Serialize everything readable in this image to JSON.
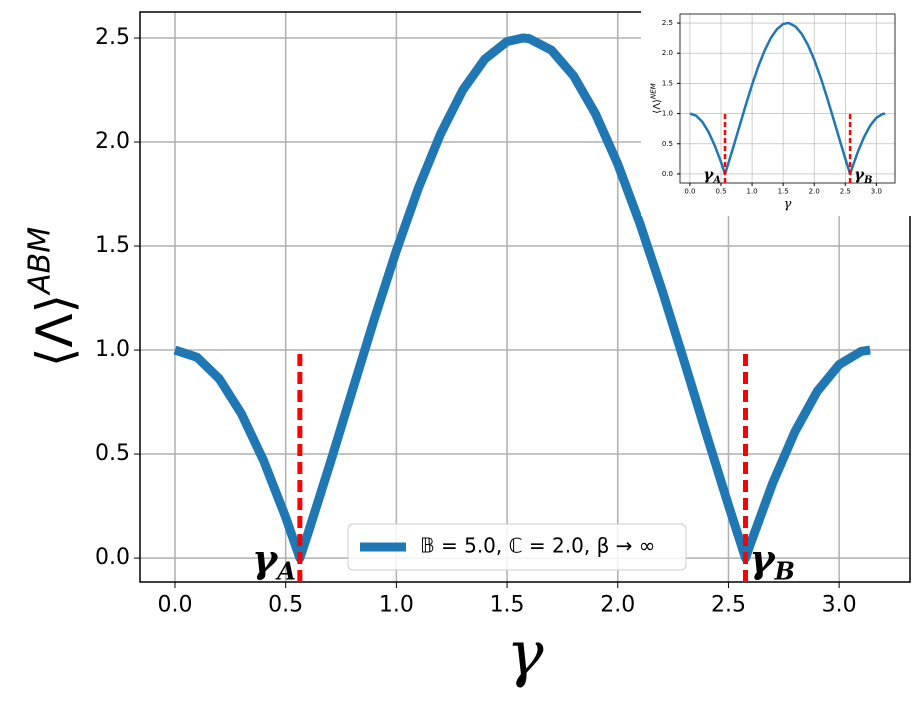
{
  "chart_data": [
    {
      "type": "line",
      "x_label": "γ",
      "y_label": "⟨Λ⟩",
      "y_label_sup": "ABM",
      "x": [
        0,
        0.1,
        0.2,
        0.3,
        0.4,
        0.5,
        0.564,
        0.6,
        0.7,
        0.8,
        0.9,
        1.0,
        1.1,
        1.2,
        1.3,
        1.4,
        1.5,
        1.571,
        1.6,
        1.7,
        1.8,
        1.9,
        2.0,
        2.1,
        2.2,
        2.3,
        2.4,
        2.5,
        2.577,
        2.6,
        2.7,
        2.8,
        2.9,
        3.0,
        3.1,
        3.14
      ],
      "series": [
        {
          "name": "𝔹 = 5.0, ℂ = 2.0, β → ∞",
          "color": "#1f77b4",
          "values": [
            1.0,
            0.965,
            0.862,
            0.694,
            0.469,
            0.196,
            0.0,
            0.116,
            0.453,
            0.801,
            1.148,
            1.478,
            1.78,
            2.04,
            2.25,
            2.399,
            2.483,
            2.5,
            2.497,
            2.442,
            2.319,
            2.134,
            1.894,
            1.608,
            1.288,
            0.946,
            0.597,
            0.254,
            0.0,
            0.07,
            0.361,
            0.607,
            0.8,
            0.93,
            0.994,
            1.0
          ]
        }
      ],
      "vlines": [
        {
          "x": 0.564,
          "y": 1.0,
          "label": "γ",
          "sub": "A"
        },
        {
          "x": 2.577,
          "y": 1.0,
          "label": "γ",
          "sub": "B"
        }
      ],
      "vline_color": "#ff0000",
      "xlim": [
        -0.158,
        3.32
      ],
      "ylim": [
        -0.115,
        2.625
      ],
      "xticks": [
        {
          "value": 0,
          "label": "0.0"
        },
        {
          "value": 0.5,
          "label": "0.5"
        },
        {
          "value": 1,
          "label": "1.0"
        },
        {
          "value": 1.5,
          "label": "1.5"
        },
        {
          "value": 2,
          "label": "2.0"
        },
        {
          "value": 2.5,
          "label": "2.5"
        },
        {
          "value": 3,
          "label": "3.0"
        }
      ],
      "yticks": [
        {
          "value": 0,
          "label": "0.0"
        },
        {
          "value": 0.5,
          "label": "0.5"
        },
        {
          "value": 1,
          "label": "1.0"
        },
        {
          "value": 1.5,
          "label": "1.5"
        },
        {
          "value": 2,
          "label": "2.0"
        },
        {
          "value": 2.5,
          "label": "2.5"
        }
      ],
      "grid": true,
      "legend": "lower center"
    },
    {
      "type": "line",
      "x_label": "γ",
      "y_label": "⟨Λ⟩",
      "y_label_sup": "NEM",
      "x": [
        0,
        0.1,
        0.2,
        0.3,
        0.4,
        0.5,
        0.564,
        0.6,
        0.7,
        0.8,
        0.9,
        1.0,
        1.1,
        1.2,
        1.3,
        1.4,
        1.5,
        1.571,
        1.6,
        1.7,
        1.8,
        1.9,
        2.0,
        2.1,
        2.2,
        2.3,
        2.4,
        2.5,
        2.577,
        2.6,
        2.7,
        2.8,
        2.9,
        3.0,
        3.1,
        3.14
      ],
      "series": [
        {
          "color": "#1f77b4",
          "values": [
            1.0,
            0.965,
            0.862,
            0.694,
            0.469,
            0.196,
            0.0,
            0.116,
            0.453,
            0.801,
            1.148,
            1.478,
            1.78,
            2.04,
            2.25,
            2.399,
            2.483,
            2.5,
            2.497,
            2.442,
            2.319,
            2.134,
            1.894,
            1.608,
            1.288,
            0.946,
            0.597,
            0.254,
            0.0,
            0.07,
            0.361,
            0.607,
            0.8,
            0.93,
            0.994,
            1.0
          ]
        }
      ],
      "vlines": [
        {
          "x": 0.564,
          "y": 1.0,
          "label": "γ",
          "sub": "A"
        },
        {
          "x": 2.577,
          "y": 1.0,
          "label": "γ",
          "sub": "B"
        }
      ],
      "vline_color": "#ff0000",
      "xlim": [
        -0.16,
        3.3
      ],
      "ylim": [
        -0.15,
        2.65
      ],
      "xticks": [
        {
          "value": 0,
          "label": "0.0"
        },
        {
          "value": 0.5,
          "label": "0.5"
        },
        {
          "value": 1,
          "label": "1.0"
        },
        {
          "value": 1.5,
          "label": "1.5"
        },
        {
          "value": 2,
          "label": "2.0"
        },
        {
          "value": 2.5,
          "label": "2.5"
        },
        {
          "value": 3,
          "label": "3.0"
        }
      ],
      "yticks": [
        {
          "value": 0,
          "label": "0.0"
        },
        {
          "value": 0.5,
          "label": "0.5"
        },
        {
          "value": 1,
          "label": "1.0"
        },
        {
          "value": 1.5,
          "label": "1.5"
        },
        {
          "value": 2,
          "label": "2.0"
        },
        {
          "value": 2.5,
          "label": "2.5"
        }
      ],
      "grid": true
    }
  ]
}
